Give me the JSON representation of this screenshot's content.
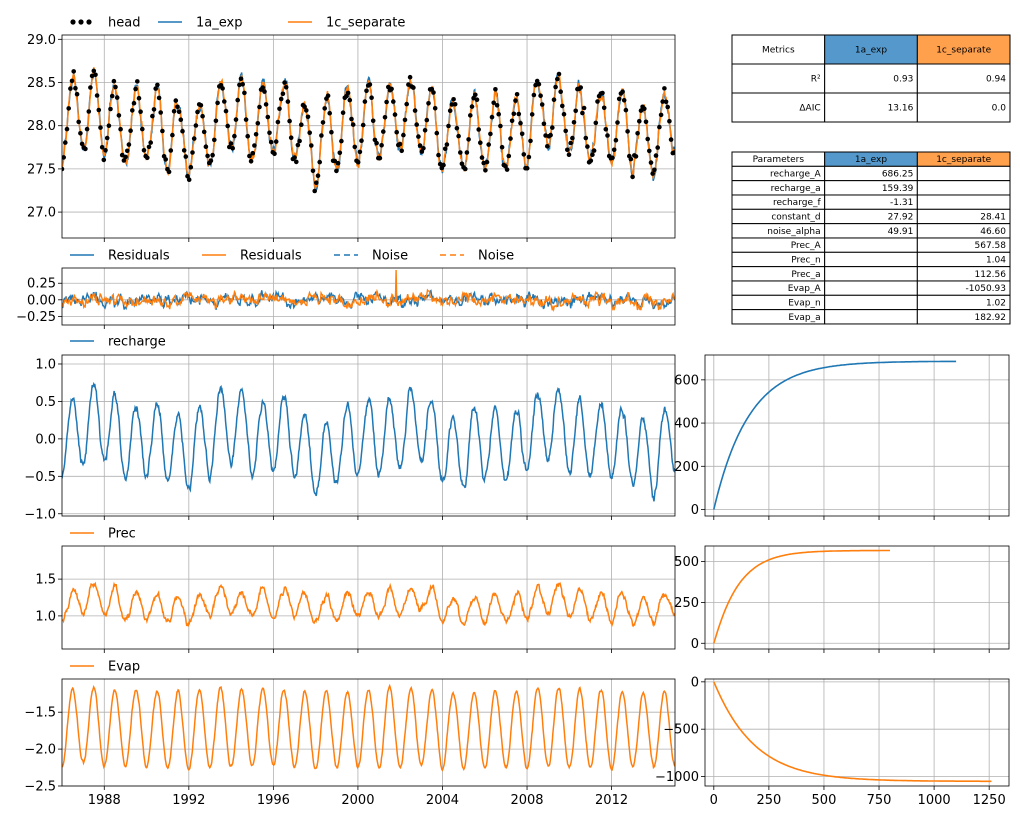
{
  "colors": {
    "blue": "#1f77b4",
    "orange": "#ff7f0e",
    "head": "#000000",
    "table_blue_header": "#5599cc",
    "table_orange_header": "#ffa04c"
  },
  "x_axis": {
    "start_year": 1986,
    "end_year": 2015,
    "tick_labels": [
      "1988",
      "1992",
      "1996",
      "2000",
      "2004",
      "2008",
      "2012"
    ]
  },
  "legends": {
    "head_panel": [
      "head",
      "1a_exp",
      "1c_separate"
    ],
    "residual_panel": [
      "Residuals",
      "Residuals",
      "Noise",
      "Noise"
    ],
    "recharge_panel": [
      "recharge"
    ],
    "prec_panel": [
      "Prec"
    ],
    "evap_panel": [
      "Evap"
    ]
  },
  "metrics_table": {
    "header": [
      "Metrics",
      "1a_exp",
      "1c_separate"
    ],
    "rows": [
      [
        "R²",
        "0.93",
        "0.94"
      ],
      [
        "ΔAIC",
        "13.16",
        "0.0"
      ]
    ]
  },
  "parameters_table": {
    "header": [
      "Parameters",
      "1a_exp",
      "1c_separate"
    ],
    "rows": [
      [
        "recharge_A",
        "686.25",
        ""
      ],
      [
        "recharge_a",
        "159.39",
        ""
      ],
      [
        "recharge_f",
        "-1.31",
        ""
      ],
      [
        "constant_d",
        "27.92",
        "28.41"
      ],
      [
        "noise_alpha",
        "49.91",
        "46.60"
      ],
      [
        "Prec_A",
        "",
        "567.58"
      ],
      [
        "Prec_n",
        "",
        "1.04"
      ],
      [
        "Prec_a",
        "",
        "112.56"
      ],
      [
        "Evap_A",
        "",
        "-1050.93"
      ],
      [
        "Evap_n",
        "",
        "1.02"
      ],
      [
        "Evap_a",
        "",
        "182.92"
      ]
    ]
  },
  "chart_data": [
    {
      "type": "line",
      "panel": "head",
      "ylim": [
        26.7,
        29.05
      ],
      "yticks": [
        27.0,
        27.5,
        28.0,
        28.5,
        29.0
      ],
      "ytick_labels": [
        "27.0",
        "27.5",
        "28.0",
        "28.5",
        "29.0"
      ],
      "series": [
        {
          "name": "head",
          "kind": "scatter",
          "color": "#000000"
        },
        {
          "name": "1a_exp",
          "kind": "line",
          "color": "#1f77b4"
        },
        {
          "name": "1c_separate",
          "kind": "line",
          "color": "#ff7f0e"
        }
      ],
      "mean": 28.0,
      "amplitude": 0.42,
      "period_years": 1.0,
      "approx_min": 26.75,
      "approx_max": 29.0
    },
    {
      "type": "line",
      "panel": "residuals",
      "ylim": [
        -0.38,
        0.48
      ],
      "yticks": [
        -0.25,
        0.0,
        0.25
      ],
      "ytick_labels": [
        "−0.25",
        "0.00",
        "0.25"
      ],
      "series": [
        {
          "name": "Residuals",
          "color": "#1f77b4",
          "style": "solid"
        },
        {
          "name": "Residuals",
          "color": "#ff7f0e",
          "style": "solid"
        },
        {
          "name": "Noise",
          "color": "#1f77b4",
          "style": "dashed"
        },
        {
          "name": "Noise",
          "color": "#ff7f0e",
          "style": "dashed"
        }
      ],
      "approx_min": -0.35,
      "approx_max": 0.45
    },
    {
      "type": "line",
      "panel": "recharge",
      "ylim": [
        -1.03,
        1.12
      ],
      "yticks": [
        -1.0,
        -0.5,
        0.0,
        0.5,
        1.0
      ],
      "ytick_labels": [
        "−1.0",
        "−0.5",
        "0.0",
        "0.5",
        "1.0"
      ],
      "series": [
        {
          "name": "recharge",
          "color": "#1f77b4"
        }
      ],
      "mean": 0.0,
      "amplitude": 0.5,
      "period_years": 1.0,
      "approx_min": -1.0,
      "approx_max": 1.08
    },
    {
      "type": "line",
      "panel": "prec",
      "ylim": [
        0.55,
        1.95
      ],
      "yticks": [
        1.0,
        1.5
      ],
      "ytick_labels": [
        "1.0",
        "1.5"
      ],
      "series": [
        {
          "name": "Prec",
          "color": "#ff7f0e"
        }
      ],
      "mean": 1.15,
      "amplitude": 0.18,
      "period_years": 1.0,
      "approx_min": 0.55,
      "approx_max": 1.93
    },
    {
      "type": "line",
      "panel": "evap",
      "ylim": [
        -2.5,
        -1.05
      ],
      "yticks": [
        -2.5,
        -2.0,
        -1.5
      ],
      "ytick_labels": [
        "−2.5",
        "−2.0",
        "−1.5"
      ],
      "series": [
        {
          "name": "Evap",
          "color": "#ff7f0e"
        }
      ],
      "mean": -1.72,
      "amplitude": 0.52,
      "period_years": 1.0,
      "approx_min": -2.5,
      "approx_max": -1.05
    },
    {
      "type": "line",
      "panel": "recharge_step_response",
      "xlim": [
        -40,
        1340
      ],
      "ylim": [
        -30,
        715
      ],
      "yticks": [
        0,
        200,
        400,
        600
      ],
      "ytick_labels": [
        "0",
        "200",
        "400",
        "600"
      ],
      "series": [
        {
          "name": "recharge step response",
          "color": "#1f77b4"
        }
      ],
      "A": 686.25,
      "a": 159.39,
      "n": 1.0,
      "x_end": 1100
    },
    {
      "type": "line",
      "panel": "prec_step_response",
      "xlim": [
        -40,
        1340
      ],
      "ylim": [
        -35,
        595
      ],
      "yticks": [
        0,
        250,
        500
      ],
      "ytick_labels": [
        "0",
        "250",
        "500"
      ],
      "series": [
        {
          "name": "Prec step response",
          "color": "#ff7f0e"
        }
      ],
      "A": 567.58,
      "a": 112.56,
      "n": 1.04,
      "x_end": 800
    },
    {
      "type": "line",
      "panel": "evap_step_response",
      "xlim": [
        -40,
        1340
      ],
      "ylim": [
        -1100,
        30
      ],
      "yticks": [
        -1000,
        -500,
        0
      ],
      "ytick_labels": [
        "−1000",
        "−500",
        "0"
      ],
      "xticks": [
        0,
        250,
        500,
        750,
        1000,
        1250
      ],
      "xtick_labels": [
        "0",
        "250",
        "500",
        "750",
        "1000",
        "1250"
      ],
      "series": [
        {
          "name": "Evap step response",
          "color": "#ff7f0e"
        }
      ],
      "A": -1050.93,
      "a": 182.92,
      "n": 1.02,
      "x_end": 1260
    }
  ]
}
